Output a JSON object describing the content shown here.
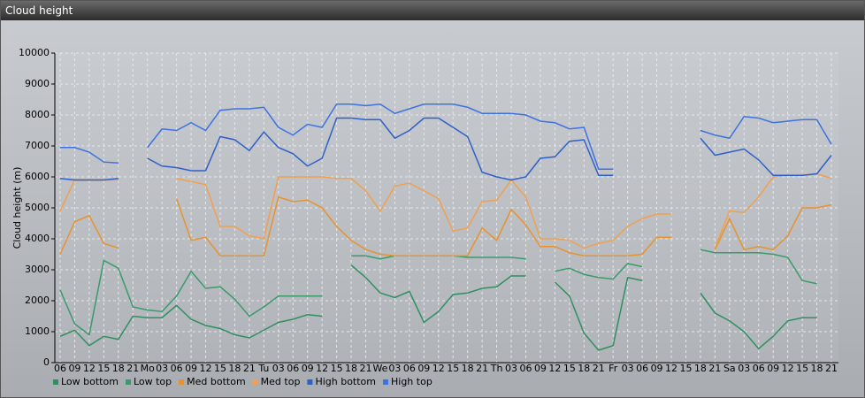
{
  "window_title": "Cloud height",
  "chart_data": {
    "type": "line",
    "y_label": "Cloud height (m)",
    "categories": [
      "06",
      "09",
      "12",
      "15",
      "18",
      "21",
      "Mo",
      "03",
      "06",
      "09",
      "12",
      "15",
      "18",
      "21",
      "Tu",
      "03",
      "06",
      "09",
      "12",
      "15",
      "18",
      "21",
      "We",
      "03",
      "06",
      "09",
      "12",
      "15",
      "18",
      "21",
      "Th",
      "03",
      "06",
      "09",
      "12",
      "15",
      "18",
      "21",
      "Fr",
      "03",
      "06",
      "09",
      "12",
      "15",
      "18",
      "21",
      "Sa",
      "03",
      "06",
      "09",
      "12",
      "15",
      "18",
      "21"
    ],
    "ylim": [
      0,
      10000
    ],
    "yticks": [
      0,
      1000,
      2000,
      3000,
      4000,
      5000,
      6000,
      7000,
      8000,
      9000,
      10000
    ],
    "grid": true,
    "legend": "bottom",
    "series": [
      {
        "name": "Low bottom",
        "color": "#2f8f5f",
        "values": [
          850,
          1050,
          550,
          850,
          750,
          1500,
          1450,
          1450,
          1850,
          1400,
          1200,
          1100,
          900,
          800,
          1050,
          1300,
          1400,
          1550,
          1500,
          null,
          3150,
          2750,
          2250,
          2100,
          2300,
          1300,
          1650,
          2200,
          2250,
          2400,
          2450,
          2800,
          2800,
          null,
          2600,
          2150,
          950,
          400,
          550,
          2750,
          2650,
          null,
          null,
          null,
          2250,
          1600,
          1350,
          1000,
          450,
          850,
          1350,
          1450,
          1450,
          null
        ]
      },
      {
        "name": "Low top",
        "color": "#3a9a6a",
        "values": [
          2350,
          1250,
          900,
          3300,
          3050,
          1800,
          1700,
          1650,
          2150,
          2950,
          2400,
          2450,
          2050,
          1500,
          1800,
          2150,
          2150,
          2150,
          2150,
          null,
          3450,
          3450,
          3350,
          3450,
          3450,
          3450,
          3450,
          3450,
          3400,
          3400,
          3400,
          3400,
          3350,
          null,
          2950,
          3050,
          2850,
          2750,
          2700,
          3200,
          3100,
          null,
          null,
          null,
          3650,
          3550,
          3550,
          3550,
          3550,
          3500,
          3400,
          2650,
          2550,
          null
        ]
      },
      {
        "name": "Med bottom",
        "color": "#e8922e",
        "values": [
          3500,
          4550,
          4750,
          3850,
          3700,
          null,
          null,
          null,
          5300,
          3950,
          4050,
          3450,
          3450,
          3450,
          3450,
          5350,
          5200,
          5250,
          5000,
          4400,
          3950,
          3650,
          3500,
          3450,
          3450,
          3450,
          3450,
          3450,
          3450,
          4350,
          3950,
          4950,
          4450,
          3750,
          3750,
          3550,
          3450,
          3450,
          3450,
          3450,
          3500,
          4050,
          4050,
          null,
          null,
          3650,
          4650,
          3650,
          3750,
          3650,
          4100,
          5000,
          5000,
          5100
        ]
      },
      {
        "name": "Med top",
        "color": "#f0a050",
        "values": [
          4900,
          5900,
          5900,
          5900,
          5900,
          null,
          null,
          null,
          5950,
          5850,
          5750,
          4400,
          4400,
          4100,
          4000,
          6000,
          6000,
          6000,
          6000,
          5950,
          5950,
          5550,
          4900,
          5700,
          5800,
          5550,
          5300,
          4250,
          4350,
          5200,
          5250,
          5900,
          5350,
          4000,
          4000,
          3950,
          3700,
          3850,
          3950,
          4400,
          4650,
          4800,
          4800,
          null,
          null,
          3700,
          4900,
          4850,
          5350,
          6000,
          6050,
          6050,
          6100,
          5950
        ]
      },
      {
        "name": "High bottom",
        "color": "#2f5fc8",
        "values": [
          5950,
          5900,
          5900,
          5900,
          5950,
          null,
          6600,
          6350,
          6300,
          6200,
          6200,
          7300,
          7200,
          6850,
          7450,
          6950,
          6750,
          6350,
          6600,
          7900,
          7900,
          7850,
          7850,
          7250,
          7500,
          7900,
          7900,
          7600,
          7300,
          6150,
          6000,
          5900,
          6000,
          6600,
          6650,
          7150,
          7200,
          6050,
          6050,
          null,
          null,
          null,
          null,
          null,
          7250,
          6700,
          6800,
          6900,
          6550,
          6050,
          6050,
          6050,
          6100,
          6700
        ]
      },
      {
        "name": "High top",
        "color": "#3d72e0",
        "values": [
          6950,
          6950,
          6800,
          6480,
          6450,
          null,
          6950,
          7550,
          7500,
          7750,
          7500,
          8150,
          8200,
          8200,
          8250,
          7600,
          7350,
          7700,
          7600,
          8350,
          8350,
          8300,
          8350,
          8050,
          8200,
          8350,
          8350,
          8350,
          8250,
          8050,
          8050,
          8050,
          8000,
          7800,
          7750,
          7550,
          7600,
          6250,
          6250,
          null,
          null,
          null,
          null,
          null,
          7500,
          7350,
          7250,
          7950,
          7900,
          7750,
          7800,
          7850,
          7850,
          7050
        ]
      }
    ]
  }
}
